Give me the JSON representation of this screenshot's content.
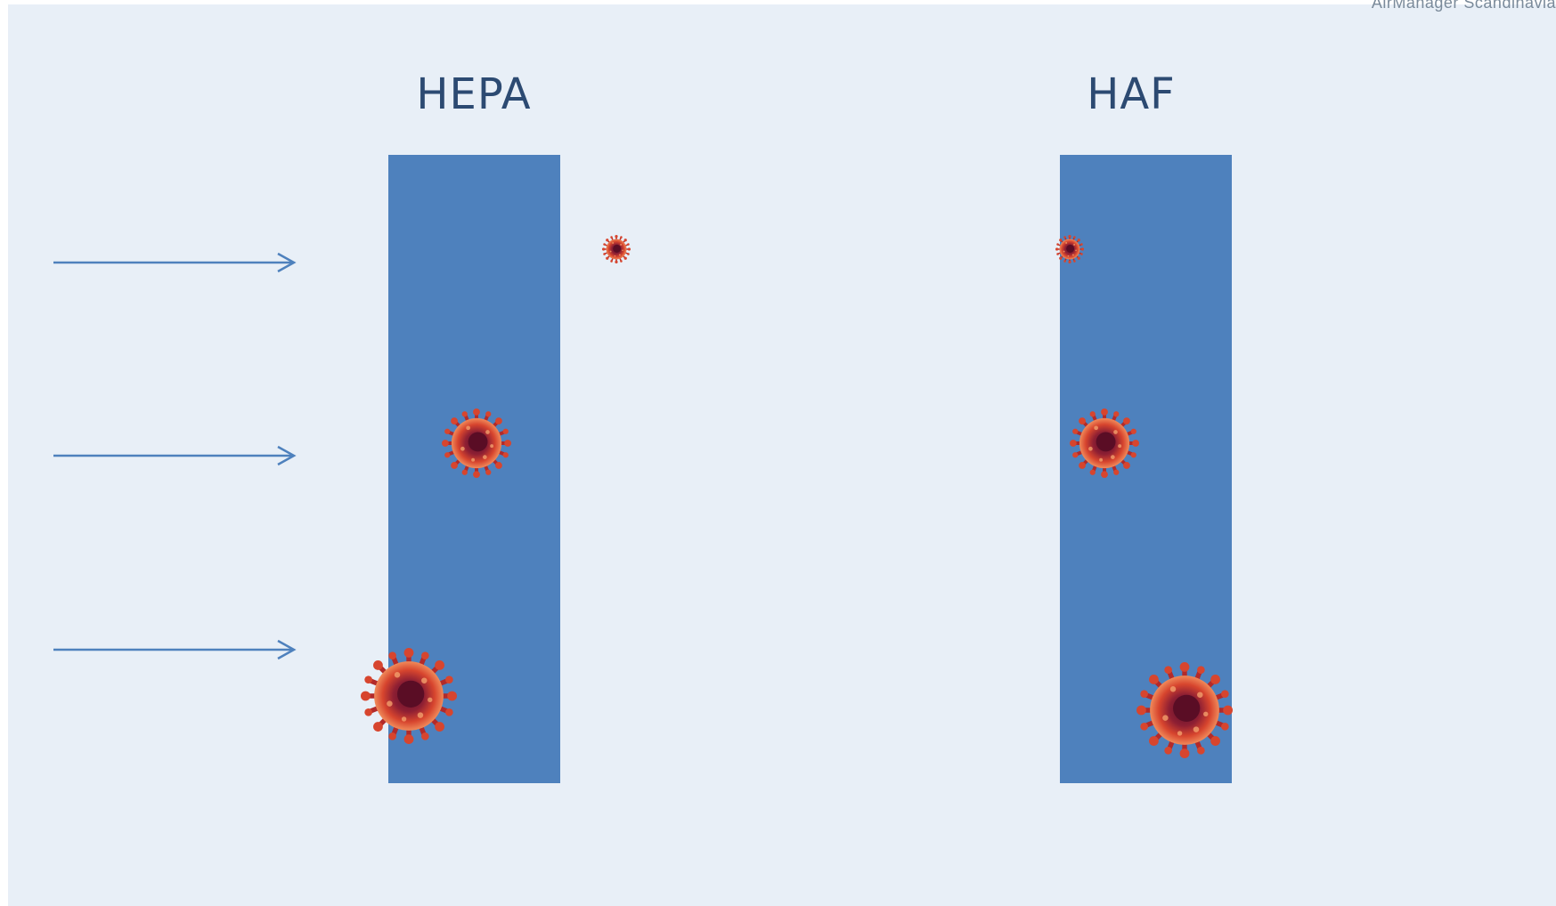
{
  "slide": {
    "corner_logo_text": "AirManager Scandinavia",
    "filters": [
      {
        "name": "HEPA",
        "color": "#4e81bd"
      },
      {
        "name": "HAF",
        "color": "#4e81bd"
      }
    ],
    "airflow_arrows": [
      "arrow-right-icon",
      "arrow-right-icon",
      "arrow-right-icon"
    ],
    "particles": {
      "icon": "virus-icon",
      "sizes": [
        "small",
        "medium",
        "large"
      ],
      "hepa": {
        "small": "passes-through",
        "medium": "captured",
        "large": "captured"
      },
      "haf": {
        "small": "captured",
        "medium": "captured",
        "large": "captured"
      }
    },
    "colors": {
      "background": "#e8eff7",
      "arrow": "#4e81bd",
      "title": "#2c4a72",
      "virus_outer": "#d7452e",
      "virus_inner": "#7a1a2e"
    }
  }
}
